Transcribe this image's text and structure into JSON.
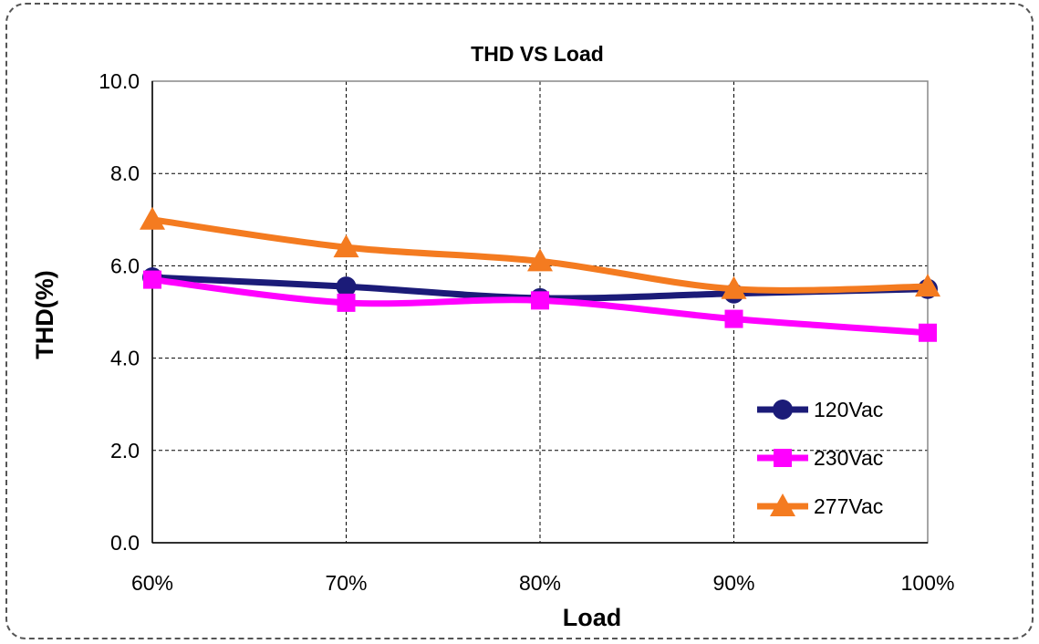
{
  "chart_data": {
    "type": "line",
    "title": "THD  VS Load",
    "xlabel": "Load",
    "ylabel": "THD(%)",
    "categories": [
      "60%",
      "70%",
      "80%",
      "90%",
      "100%"
    ],
    "y_ticks": [
      "0.0",
      "2.0",
      "4.0",
      "6.0",
      "8.0",
      "10.0"
    ],
    "ylim": [
      0,
      10
    ],
    "grid": true,
    "legend_position": "lower-right",
    "series": [
      {
        "name": "120Vac",
        "values": [
          5.75,
          5.55,
          5.3,
          5.4,
          5.5
        ],
        "color": "#1b1b78",
        "marker": "circle"
      },
      {
        "name": "230Vac",
        "values": [
          5.7,
          5.2,
          5.25,
          4.85,
          4.55
        ],
        "color": "#ff00ff",
        "marker": "square"
      },
      {
        "name": "277Vac",
        "values": [
          7.0,
          6.4,
          6.1,
          5.5,
          5.55
        ],
        "color": "#f47b20",
        "marker": "triangle"
      }
    ]
  }
}
